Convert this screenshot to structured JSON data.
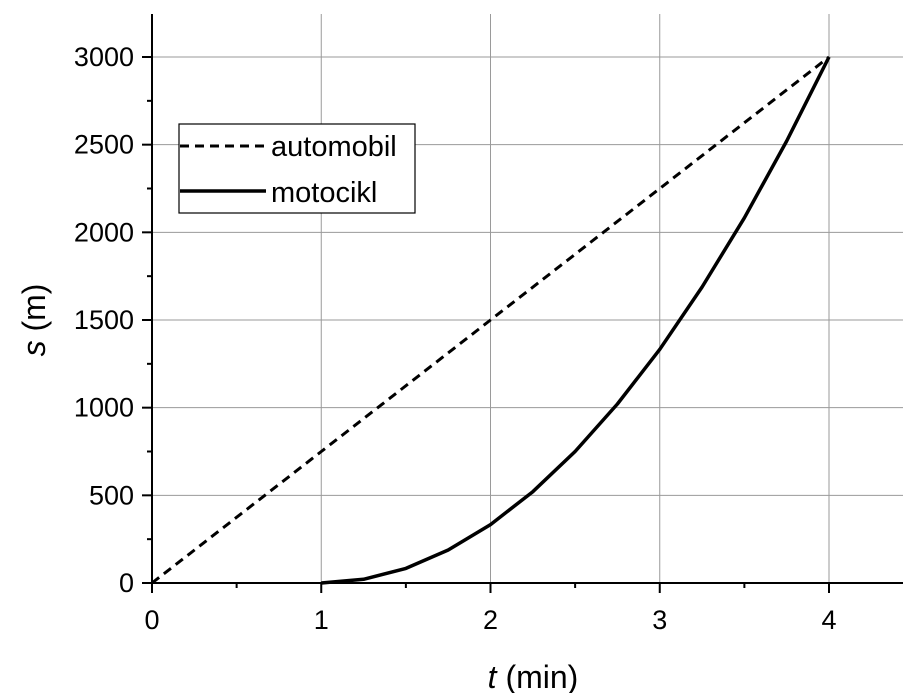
{
  "chart_data": {
    "type": "line",
    "xlabel_var": "t",
    "xlabel_unit": " (min)",
    "ylabel_var": "s",
    "ylabel_unit": " (m)",
    "xlim": [
      0,
      4.45
    ],
    "ylim": [
      0,
      3200
    ],
    "x_ticks": [
      0,
      1,
      2,
      3,
      4
    ],
    "x_tick_labels": [
      "0",
      "1",
      "2",
      "3",
      "4"
    ],
    "y_ticks": [
      0,
      500,
      1000,
      1500,
      2000,
      2500,
      3000
    ],
    "y_tick_labels": [
      "0",
      "500",
      "1000",
      "1500",
      "2000",
      "2500",
      "3000"
    ],
    "y_minor_step": 250,
    "grid": true,
    "legend_position": "top-left",
    "series": [
      {
        "name": "automobil",
        "style": "dashed",
        "color": "#000000",
        "x": [
          0,
          1,
          2,
          3,
          4
        ],
        "y": [
          0,
          750,
          1500,
          2250,
          3000
        ]
      },
      {
        "name": "motocikl",
        "style": "solid",
        "color": "#000000",
        "x": [
          1,
          1.25,
          1.5,
          1.75,
          2,
          2.25,
          2.5,
          2.75,
          3,
          3.25,
          3.5,
          3.75,
          4
        ],
        "y": [
          0,
          21,
          83,
          188,
          333,
          521,
          750,
          1021,
          1333,
          1688,
          2083,
          2521,
          3000
        ]
      }
    ]
  }
}
